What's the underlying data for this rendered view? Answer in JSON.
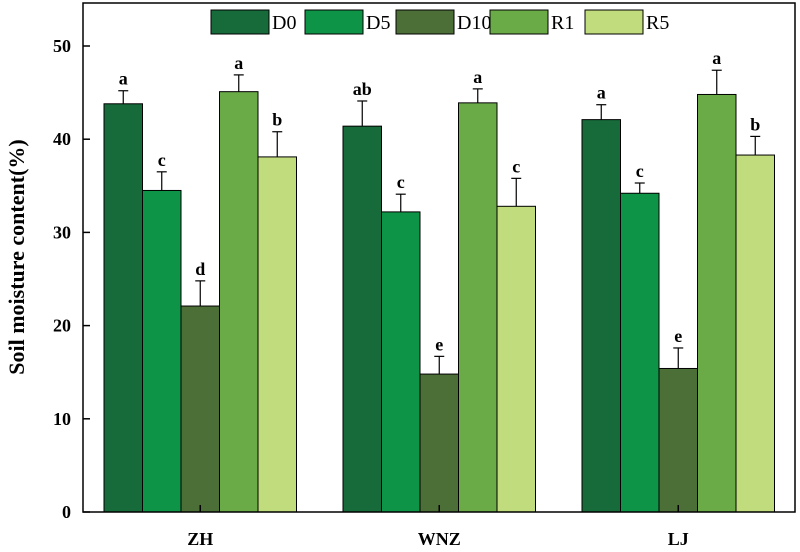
{
  "chart_data": {
    "type": "bar",
    "title": "",
    "xlabel": "",
    "ylabel": "Soil moisture content(%)",
    "ylim": [
      0,
      50
    ],
    "yticks": [
      0,
      10,
      20,
      30,
      40,
      50
    ],
    "categories": [
      "ZH",
      "WNZ",
      "LJ"
    ],
    "legend_position": "top",
    "series": [
      {
        "name": "D0",
        "color": "#176a3a",
        "values": [
          43.8,
          41.4,
          42.1
        ],
        "errors": [
          1.4,
          2.7,
          1.6
        ],
        "labels": [
          "a",
          "ab",
          "a"
        ]
      },
      {
        "name": "D5",
        "color": "#0e9446",
        "values": [
          34.5,
          32.2,
          34.2
        ],
        "errors": [
          2.0,
          1.9,
          1.1
        ],
        "labels": [
          "c",
          "c",
          "c"
        ]
      },
      {
        "name": "D10",
        "color": "#4c6e37",
        "values": [
          22.1,
          14.8,
          15.4
        ],
        "errors": [
          2.7,
          1.9,
          2.2
        ],
        "labels": [
          "d",
          "e",
          "e"
        ]
      },
      {
        "name": "R1",
        "color": "#6aaa47",
        "values": [
          45.1,
          43.9,
          44.8
        ],
        "errors": [
          1.8,
          1.5,
          2.6
        ],
        "labels": [
          "a",
          "a",
          "a"
        ]
      },
      {
        "name": "R5",
        "color": "#c0dc7c",
        "values": [
          38.1,
          32.8,
          38.3
        ],
        "errors": [
          2.7,
          3.0,
          2.0
        ],
        "labels": [
          "b",
          "c",
          "b"
        ]
      }
    ]
  }
}
